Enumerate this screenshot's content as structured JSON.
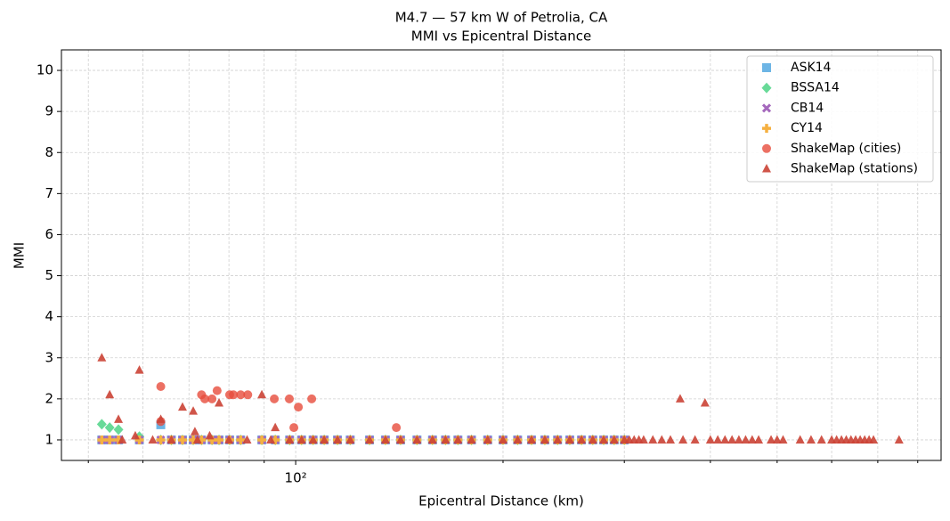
{
  "chart_data": {
    "type": "scatter",
    "title": "M4.7 — 57 km W of Petrolia, CA",
    "subtitle": "MMI vs Epicentral Distance",
    "xlabel": "Epicentral Distance (km)",
    "ylabel": "MMI",
    "xscale": "log",
    "xlim": [
      45.7,
      865
    ],
    "ylim": [
      0.5,
      10.5
    ],
    "xticks": [
      {
        "value": 100,
        "label": "10²"
      }
    ],
    "xticks_minor": [
      50,
      60,
      70,
      80,
      90,
      200,
      300,
      400,
      500,
      600,
      700,
      800
    ],
    "yticks": [
      1,
      2,
      3,
      4,
      5,
      6,
      7,
      8,
      9,
      10
    ],
    "grid": true,
    "legend": "upper right",
    "series": [
      {
        "name": "ASK14",
        "color": "#5dade2",
        "marker": "square",
        "x": [
          52.3,
          53.7,
          55.3,
          59.3,
          63.7,
          66,
          68.5,
          71,
          73,
          75.6,
          77.4,
          80.2,
          83.2,
          89.3,
          93.4,
          98,
          102,
          106,
          110,
          115,
          120,
          128,
          135,
          142,
          150,
          158,
          165,
          172,
          180,
          190,
          200,
          210,
          220,
          230,
          240,
          250,
          260,
          270,
          280,
          290,
          300
        ],
        "values": [
          1,
          1,
          1,
          1,
          1.37,
          1,
          1,
          1,
          1,
          1,
          1,
          1,
          1,
          1,
          1,
          1,
          1,
          1,
          1,
          1,
          1,
          1,
          1,
          1,
          1,
          1,
          1,
          1,
          1,
          1,
          1,
          1,
          1,
          1,
          1,
          1,
          1,
          1,
          1,
          1,
          1
        ]
      },
      {
        "name": "BSSA14",
        "color": "#58d68d",
        "marker": "diamond",
        "x": [
          52.3,
          53.7,
          55.3,
          59.3,
          63.7,
          66,
          68.5,
          71,
          73,
          75.6,
          77.4,
          80.2,
          83.2,
          89.3,
          93.4,
          98,
          102,
          106,
          110,
          115,
          120,
          128,
          135,
          142,
          150,
          158,
          165,
          172,
          180,
          190,
          200,
          210,
          220,
          230,
          240,
          250,
          260,
          270,
          280,
          290,
          300
        ],
        "values": [
          1.38,
          1.3,
          1.25,
          1.08,
          1,
          1,
          1,
          1,
          1,
          1,
          1,
          1,
          1,
          1,
          1,
          1,
          1,
          1,
          1,
          1,
          1,
          1,
          1,
          1,
          1,
          1,
          1,
          1,
          1,
          1,
          1,
          1,
          1,
          1,
          1,
          1,
          1,
          1,
          1,
          1,
          1
        ]
      },
      {
        "name": "CB14",
        "color": "#a569bd",
        "marker": "x",
        "x": [
          52.3,
          53.7,
          55.3,
          59.3,
          63.7,
          66,
          68.5,
          71,
          73,
          75.6,
          77.4,
          80.2,
          83.2,
          89.3,
          93.4,
          98,
          102,
          106,
          110,
          115,
          120,
          128,
          135,
          142,
          150,
          158,
          165,
          172,
          180,
          190,
          200,
          210,
          220,
          230,
          240,
          250,
          260,
          270,
          280,
          290,
          300
        ],
        "values": [
          1,
          1,
          1,
          1,
          1,
          1,
          1,
          1,
          1,
          1,
          1,
          1,
          1,
          1,
          1,
          1,
          1,
          1,
          1,
          1,
          1,
          1,
          1,
          1,
          1,
          1,
          1,
          1,
          1,
          1,
          1,
          1,
          1,
          1,
          1,
          1,
          1,
          1,
          1,
          1,
          1
        ]
      },
      {
        "name": "CY14",
        "color": "#f5b041",
        "marker": "plus",
        "x": [
          52.3,
          53.7,
          55.3,
          59.3,
          63.7,
          66,
          68.5,
          71,
          73,
          75.6,
          77.4,
          80.2,
          83.2,
          89.3,
          93.4,
          98,
          102,
          106,
          110,
          115,
          120,
          128,
          135,
          142,
          150,
          158,
          165,
          172,
          180,
          190,
          200,
          210,
          220,
          230,
          240,
          250,
          260,
          270,
          280,
          290,
          300
        ],
        "values": [
          1,
          1,
          1,
          1,
          1,
          1,
          1,
          1,
          1,
          1,
          1,
          1,
          1,
          1,
          1,
          1,
          1,
          1,
          1,
          1,
          1,
          1,
          1,
          1,
          1,
          1,
          1,
          1,
          1,
          1,
          1,
          1,
          1,
          1,
          1,
          1,
          1,
          1,
          1,
          1,
          1
        ]
      },
      {
        "name": "ShakeMap (cities)",
        "color": "#e74c3c",
        "marker": "circle",
        "x": [
          63.7,
          63.7,
          73.0,
          73.8,
          75.6,
          76.9,
          80.2,
          81.2,
          83.2,
          85.2,
          93.1,
          97.9,
          100.9,
          105.5,
          99.4,
          140.0
        ],
        "values": [
          2.3,
          1.45,
          2.1,
          2.0,
          2.0,
          2.2,
          2.1,
          2.1,
          2.1,
          2.1,
          2.0,
          2.0,
          1.8,
          2.0,
          1.3,
          1.3
        ]
      },
      {
        "name": "ShakeMap (stations)",
        "color": "#cb4335",
        "marker": "triangle",
        "x": [
          52.3,
          53.7,
          55.3,
          59.3,
          63.7,
          68.5,
          71.0,
          71.4,
          77.4,
          89.3,
          93.4,
          361.6,
          392.9,
          58.5,
          75.0,
          56,
          62,
          66,
          72,
          80,
          85,
          92,
          98,
          102,
          106,
          110,
          115,
          120,
          128,
          135,
          142,
          150,
          158,
          165,
          172,
          180,
          190,
          200,
          210,
          220,
          230,
          240,
          250,
          260,
          270,
          280,
          290,
          300,
          305,
          310,
          315,
          320,
          330,
          340,
          350,
          365,
          380,
          400,
          410,
          420,
          430,
          440,
          450,
          460,
          470,
          490,
          500,
          510,
          540,
          560,
          580,
          600,
          610,
          620,
          630,
          640,
          650,
          660,
          670,
          680,
          690,
          751.6
        ],
        "values": [
          3.0,
          2.1,
          1.5,
          2.7,
          1.5,
          1.8,
          1.7,
          1.2,
          1.9,
          2.1,
          1.3,
          2.0,
          1.9,
          1.1,
          1.1,
          1,
          1,
          1,
          1,
          1,
          1,
          1,
          1,
          1,
          1,
          1,
          1,
          1,
          1,
          1,
          1,
          1,
          1,
          1,
          1,
          1,
          1,
          1,
          1,
          1,
          1,
          1,
          1,
          1,
          1,
          1,
          1,
          1,
          1,
          1,
          1,
          1,
          1,
          1,
          1,
          1,
          1,
          1,
          1,
          1,
          1,
          1,
          1,
          1,
          1,
          1,
          1,
          1,
          1,
          1,
          1,
          1,
          1,
          1,
          1,
          1,
          1,
          1,
          1,
          1,
          1,
          1
        ]
      }
    ]
  }
}
